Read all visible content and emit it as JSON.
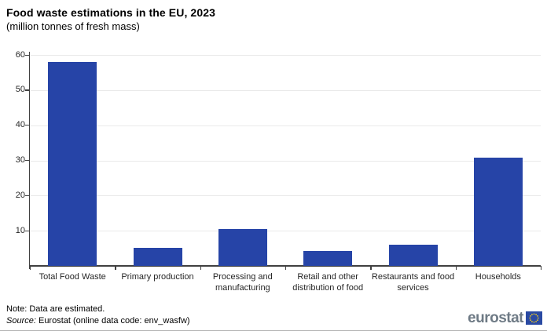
{
  "header": {
    "title": "Food waste estimations in the EU, 2023",
    "subtitle": "(million tonnes of fresh mass)"
  },
  "chart_data": {
    "type": "bar",
    "title": "Food waste estimations in the EU, 2023",
    "subtitle": "(million tonnes of fresh mass)",
    "categories": [
      "Total Food Waste",
      "Primary production",
      "Processing and manufacturing",
      "Retail and other distribution of food",
      "Restaurants and food services",
      "Households"
    ],
    "values": [
      58,
      5.1,
      10.5,
      4.2,
      6.1,
      30.8
    ],
    "xlabel": "",
    "ylabel": "",
    "ylim": [
      0,
      60
    ],
    "yticks": [
      10,
      20,
      30,
      40,
      50,
      60
    ],
    "grid": true,
    "legend_position": "none",
    "bar_color": "#2644a7"
  },
  "footer": {
    "note": "Note: Data are estimated.",
    "source_label": "Source:",
    "source_text": " Eurostat (online data code: env_wasfw)",
    "logo_text": "eurostat"
  },
  "colors": {
    "bar": "#2644a7",
    "gridline": "#e9e9e9",
    "axis": "#404040",
    "flag_blue": "#2a4aa3",
    "flag_stars": "#ffd617",
    "logo_gray": "#6e7a85"
  }
}
